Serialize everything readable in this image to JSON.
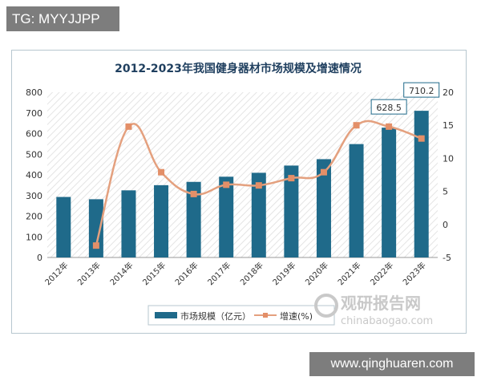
{
  "overlay": {
    "tg_label": "TG: MYYJJPP",
    "site_url": "www.qinghuaren.com"
  },
  "watermark": {
    "name": "观研报告网",
    "url": "chinabaogao.com"
  },
  "colors": {
    "bar": "#1f6a8a",
    "line": "#e4a07e",
    "marker": "#e38f68",
    "title": "#1f3f5f"
  },
  "chart_data": {
    "type": "bar",
    "title": "2012-2023年我国健身器材市场规模及增速情况",
    "categories": [
      "2012年",
      "2013年",
      "2014年",
      "2015年",
      "2016年",
      "2017年",
      "2018年",
      "2019年",
      "2020年",
      "2021年",
      "2022年",
      "2023年"
    ],
    "y_left": {
      "min": 0,
      "max": 800,
      "ticks": [
        "0",
        "100",
        "200",
        "300",
        "400",
        "500",
        "600",
        "700",
        "800"
      ]
    },
    "y_right": {
      "min": -5,
      "max": 20,
      "ticks": [
        "-5",
        "0",
        "5",
        "10",
        "15",
        "20"
      ]
    },
    "series": [
      {
        "name": "市场规模（亿元）",
        "type": "bar",
        "axis": "left",
        "values": [
          293,
          282,
          325,
          350,
          366,
          391,
          410,
          445,
          476,
          549,
          628.5,
          710.2
        ]
      },
      {
        "name": "增速(%)",
        "type": "line",
        "axis": "right",
        "values": [
          null,
          -3.2,
          14.8,
          7.9,
          4.6,
          6.0,
          5.9,
          7.0,
          7.9,
          15.0,
          14.8,
          13.0
        ]
      }
    ],
    "data_labels": [
      {
        "index": 10,
        "text": "628.5"
      },
      {
        "index": 11,
        "text": "710.2"
      }
    ],
    "legend": {
      "position": "bottom"
    }
  }
}
